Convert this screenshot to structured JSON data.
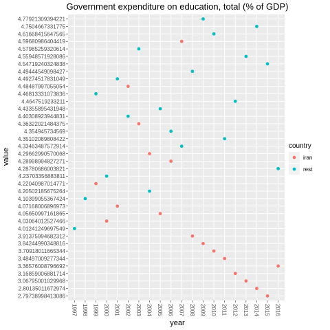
{
  "chart_data": {
    "type": "scatter",
    "title": "Government expenditure on education, total (% of GDP)",
    "x_label": "year",
    "y_label": "value",
    "legend_title": "country",
    "xlim": [
      1996.4,
      2016.6
    ],
    "xticks": [
      1997,
      1998,
      1999,
      2000,
      2001,
      2002,
      2003,
      2004,
      2005,
      2006,
      2007,
      2008,
      2009,
      2010,
      2011,
      2012,
      2013,
      2014,
      2015,
      2016
    ],
    "y_scale": "discrete",
    "yticks": [
      2.79738998413086,
      2.80135011672974,
      3.06795001029968,
      3.16859006881714,
      3.36576008796692,
      3.48497009277344,
      3.70918011665344,
      3.84244990348816,
      3.91375994682312,
      4.01241249697549,
      4.03064012527466,
      4.05650997161865,
      4.07168006896973,
      4.10399055367424,
      4.20502185675264,
      4.22040987014771,
      4.23703356883811,
      4.28780686003821,
      4.28998994827271,
      4.29662990570068,
      4.33463487572914,
      4.35102089808422,
      4.354945734569,
      4.36322021484375,
      4.40308923944831,
      4.43355895431948,
      4.4647519233211,
      4.46813331073836,
      4.48487997055054,
      4.49274517831049,
      4.49444549098427,
      4.54719240324838,
      4.55948571928086,
      4.57985259320614,
      4.59680986404419,
      4.61668415647565,
      4.7504667331775,
      4.77921309394221
    ],
    "grid": true,
    "series": [
      {
        "name": "iran",
        "color": "#F8766D",
        "x": [
          1999,
          2000,
          2001,
          2002,
          2003,
          2004,
          2005,
          2006,
          2007,
          2008,
          2009,
          2010,
          2011,
          2012,
          2013,
          2014,
          2015,
          2016
        ],
        "values": [
          4.22040987014771,
          4.03064012527466,
          4.07168006896973,
          4.48487997055054,
          4.36322021484375,
          4.29662990570068,
          4.05650997161865,
          4.28998994827271,
          4.59680986404419,
          3.91375994682312,
          3.84244990348816,
          3.70918011665344,
          3.48497009277344,
          3.16859006881714,
          3.06795001029968,
          2.80135011672974,
          2.79738998413086,
          3.36576008796692
        ]
      },
      {
        "name": "rest",
        "color": "#00BFC4",
        "x": [
          1997,
          1998,
          1999,
          2000,
          2001,
          2002,
          2003,
          2004,
          2005,
          2006,
          2007,
          2008,
          2009,
          2010,
          2011,
          2012,
          2013,
          2014,
          2015,
          2016
        ],
        "values": [
          4.01241249697549,
          4.10399055367424,
          4.46813331073836,
          4.23703356883811,
          4.49274517831049,
          4.40308923944831,
          4.57985259320614,
          4.20502185675264,
          4.43355895431948,
          4.354945734569,
          4.33463487572914,
          4.49444549098427,
          4.77921309394221,
          4.61668415647565,
          4.35102089808422,
          4.4647519233211,
          4.55948571928086,
          4.7504667331775,
          4.54719240324838,
          4.28780686003821
        ]
      }
    ]
  }
}
